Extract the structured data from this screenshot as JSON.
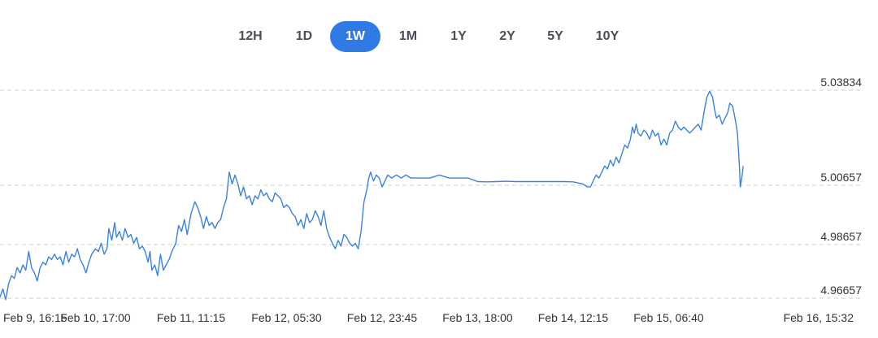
{
  "range_tabs": [
    {
      "label": "12H",
      "active": false
    },
    {
      "label": "1D",
      "active": false
    },
    {
      "label": "1W",
      "active": true
    },
    {
      "label": "1M",
      "active": false
    },
    {
      "label": "1Y",
      "active": false
    },
    {
      "label": "2Y",
      "active": false
    },
    {
      "label": "5Y",
      "active": false
    },
    {
      "label": "10Y",
      "active": false
    }
  ],
  "colors": {
    "line": "#3b82e0",
    "grid": "#cfcfcf",
    "active_tab": "#2f7ae5"
  },
  "chart_data": {
    "type": "line",
    "grid": true,
    "y_ticks": [
      "5.03834",
      "5.00657",
      "4.98657",
      "4.96657"
    ],
    "y_tick_values": [
      5.03834,
      5.00657,
      4.98657,
      4.96657
    ],
    "x_ticks": [
      "Feb 9, 16:15",
      "Feb 10, 17:00",
      "Feb 11, 11:15",
      "Feb 12, 05:30",
      "Feb 12, 23:45",
      "Feb 13, 18:00",
      "Feb 14, 12:15",
      "Feb 15, 06:40",
      "Feb 16, 15:32"
    ],
    "x_tick_positions": [
      0,
      1,
      2,
      3,
      4,
      5,
      6,
      7,
      8.2
    ],
    "series": [
      {
        "points": [
          [
            0,
            4.967
          ],
          [
            0.03,
            4.97
          ],
          [
            0.06,
            4.966
          ],
          [
            0.09,
            4.972
          ],
          [
            0.12,
            4.975
          ],
          [
            0.15,
            4.974
          ],
          [
            0.18,
            4.978
          ],
          [
            0.21,
            4.976
          ],
          [
            0.24,
            4.979
          ],
          [
            0.27,
            4.977
          ],
          [
            0.3,
            4.984
          ],
          [
            0.33,
            4.978
          ],
          [
            0.36,
            4.976
          ],
          [
            0.39,
            4.973
          ],
          [
            0.42,
            4.978
          ],
          [
            0.45,
            4.98
          ],
          [
            0.48,
            4.979
          ],
          [
            0.51,
            4.982
          ],
          [
            0.54,
            4.981
          ],
          [
            0.57,
            4.983
          ],
          [
            0.6,
            4.981
          ],
          [
            0.63,
            4.982
          ],
          [
            0.66,
            4.979
          ],
          [
            0.69,
            4.984
          ],
          [
            0.72,
            4.98
          ],
          [
            0.75,
            4.983
          ],
          [
            0.78,
            4.982
          ],
          [
            0.81,
            4.985
          ],
          [
            0.84,
            4.981
          ],
          [
            0.87,
            4.979
          ],
          [
            0.9,
            4.976
          ],
          [
            0.93,
            4.98
          ],
          [
            0.96,
            4.983
          ],
          [
            1.0,
            4.985
          ],
          [
            1.03,
            4.984
          ],
          [
            1.06,
            4.987
          ],
          [
            1.09,
            4.983
          ],
          [
            1.12,
            4.985
          ],
          [
            1.14,
            4.992
          ],
          [
            1.17,
            4.988
          ],
          [
            1.2,
            4.994
          ],
          [
            1.22,
            4.989
          ],
          [
            1.25,
            4.991
          ],
          [
            1.28,
            4.988
          ],
          [
            1.31,
            4.992
          ],
          [
            1.34,
            4.989
          ],
          [
            1.37,
            4.99
          ],
          [
            1.4,
            4.987
          ],
          [
            1.43,
            4.989
          ],
          [
            1.46,
            4.985
          ],
          [
            1.49,
            4.986
          ],
          [
            1.52,
            4.984
          ],
          [
            1.55,
            4.98
          ],
          [
            1.57,
            4.984
          ],
          [
            1.59,
            4.977
          ],
          [
            1.62,
            4.979
          ],
          [
            1.65,
            4.975
          ],
          [
            1.68,
            4.983
          ],
          [
            1.71,
            4.977
          ],
          [
            1.74,
            4.979
          ],
          [
            1.77,
            4.981
          ],
          [
            1.8,
            4.984
          ],
          [
            1.84,
            4.987
          ],
          [
            1.87,
            4.993
          ],
          [
            1.9,
            4.991
          ],
          [
            1.93,
            4.995
          ],
          [
            1.96,
            4.99
          ],
          [
            2.0,
            4.997
          ],
          [
            2.04,
            5.001
          ],
          [
            2.07,
            4.999
          ],
          [
            2.1,
            4.996
          ],
          [
            2.13,
            4.992
          ],
          [
            2.16,
            4.996
          ],
          [
            2.19,
            4.993
          ],
          [
            2.22,
            4.994
          ],
          [
            2.25,
            4.992
          ],
          [
            2.28,
            4.994
          ],
          [
            2.31,
            4.995
          ],
          [
            2.34,
            4.999
          ],
          [
            2.37,
            5.002
          ],
          [
            2.4,
            5.011
          ],
          [
            2.43,
            5.007
          ],
          [
            2.46,
            5.01
          ],
          [
            2.49,
            5.007
          ],
          [
            2.52,
            5.003
          ],
          [
            2.55,
            5.006
          ],
          [
            2.58,
            5.002
          ],
          [
            2.61,
            5.003
          ],
          [
            2.64,
            5.0
          ],
          [
            2.67,
            5.003
          ],
          [
            2.7,
            5.002
          ],
          [
            2.73,
            5.005
          ],
          [
            2.76,
            5.003
          ],
          [
            2.79,
            5.004
          ],
          [
            2.82,
            5.002
          ],
          [
            2.85,
            5.001
          ],
          [
            2.88,
            5.004
          ],
          [
            2.91,
            5.003
          ],
          [
            2.94,
            5.002
          ],
          [
            2.97,
            4.999
          ],
          [
            3.0,
            5.0
          ],
          [
            3.03,
            4.999
          ],
          [
            3.06,
            4.997
          ],
          [
            3.09,
            4.996
          ],
          [
            3.12,
            4.993
          ],
          [
            3.15,
            4.995
          ],
          [
            3.18,
            4.992
          ],
          [
            3.21,
            4.997
          ],
          [
            3.24,
            4.994
          ],
          [
            3.27,
            4.995
          ],
          [
            3.3,
            4.998
          ],
          [
            3.33,
            4.996
          ],
          [
            3.36,
            4.993
          ],
          [
            3.39,
            4.998
          ],
          [
            3.42,
            4.992
          ],
          [
            3.45,
            4.989
          ],
          [
            3.48,
            4.987
          ],
          [
            3.51,
            4.985
          ],
          [
            3.54,
            4.988
          ],
          [
            3.57,
            4.986
          ],
          [
            3.6,
            4.99
          ],
          [
            3.63,
            4.989
          ],
          [
            3.66,
            4.987
          ],
          [
            3.69,
            4.986
          ],
          [
            3.72,
            4.987
          ],
          [
            3.75,
            4.985
          ],
          [
            3.78,
            4.991
          ],
          [
            3.81,
            5.001
          ],
          [
            3.84,
            5.005
          ],
          [
            3.86,
            5.009
          ],
          [
            3.88,
            5.011
          ],
          [
            3.91,
            5.008
          ],
          [
            3.94,
            5.01
          ],
          [
            3.97,
            5.009
          ],
          [
            4.0,
            5.006
          ],
          [
            4.03,
            5.008
          ],
          [
            4.06,
            5.01
          ],
          [
            4.1,
            5.009
          ],
          [
            4.15,
            5.01
          ],
          [
            4.2,
            5.009
          ],
          [
            4.25,
            5.01
          ],
          [
            4.3,
            5.009
          ],
          [
            4.35,
            5.009
          ],
          [
            4.4,
            5.009
          ],
          [
            4.5,
            5.009
          ],
          [
            4.6,
            5.01
          ],
          [
            4.7,
            5.009
          ],
          [
            4.8,
            5.009
          ],
          [
            4.9,
            5.009
          ],
          [
            5.0,
            5.0078
          ],
          [
            5.1,
            5.0077
          ],
          [
            5.2,
            5.0078
          ],
          [
            5.3,
            5.0079
          ],
          [
            5.4,
            5.0078
          ],
          [
            5.5,
            5.0078
          ],
          [
            5.6,
            5.0078
          ],
          [
            5.7,
            5.0078
          ],
          [
            5.8,
            5.0078
          ],
          [
            5.9,
            5.0078
          ],
          [
            6.0,
            5.0077
          ],
          [
            6.1,
            5.007
          ],
          [
            6.15,
            5.006
          ],
          [
            6.18,
            5.006
          ],
          [
            6.21,
            5.008
          ],
          [
            6.24,
            5.01
          ],
          [
            6.27,
            5.009
          ],
          [
            6.3,
            5.011
          ],
          [
            6.33,
            5.013
          ],
          [
            6.36,
            5.012
          ],
          [
            6.39,
            5.015
          ],
          [
            6.42,
            5.013
          ],
          [
            6.45,
            5.016
          ],
          [
            6.48,
            5.014
          ],
          [
            6.51,
            5.017
          ],
          [
            6.54,
            5.02
          ],
          [
            6.57,
            5.019
          ],
          [
            6.6,
            5.022
          ],
          [
            6.62,
            5.026
          ],
          [
            6.64,
            5.024
          ],
          [
            6.66,
            5.027
          ],
          [
            6.68,
            5.024
          ],
          [
            6.71,
            5.023
          ],
          [
            6.74,
            5.025
          ],
          [
            6.77,
            5.024
          ],
          [
            6.8,
            5.022
          ],
          [
            6.83,
            5.025
          ],
          [
            6.86,
            5.023
          ],
          [
            6.89,
            5.024
          ],
          [
            6.92,
            5.02
          ],
          [
            6.95,
            5.022
          ],
          [
            6.98,
            5.02
          ],
          [
            7.01,
            5.024
          ],
          [
            7.04,
            5.025
          ],
          [
            7.07,
            5.028
          ],
          [
            7.1,
            5.026
          ],
          [
            7.13,
            5.025
          ],
          [
            7.16,
            5.026
          ],
          [
            7.19,
            5.025
          ],
          [
            7.22,
            5.024
          ],
          [
            7.25,
            5.025
          ],
          [
            7.28,
            5.026
          ],
          [
            7.31,
            5.027
          ],
          [
            7.34,
            5.025
          ],
          [
            7.37,
            5.031
          ],
          [
            7.4,
            5.036
          ],
          [
            7.43,
            5.038
          ],
          [
            7.46,
            5.036
          ],
          [
            7.48,
            5.032
          ],
          [
            7.5,
            5.029
          ],
          [
            7.53,
            5.03
          ],
          [
            7.56,
            5.027
          ],
          [
            7.59,
            5.029
          ],
          [
            7.62,
            5.031
          ],
          [
            7.64,
            5.034
          ],
          [
            7.67,
            5.033
          ],
          [
            7.7,
            5.028
          ],
          [
            7.72,
            5.024
          ],
          [
            7.74,
            5.013
          ],
          [
            7.75,
            5.006
          ],
          [
            7.77,
            5.01
          ],
          [
            7.78,
            5.013
          ]
        ]
      }
    ]
  }
}
